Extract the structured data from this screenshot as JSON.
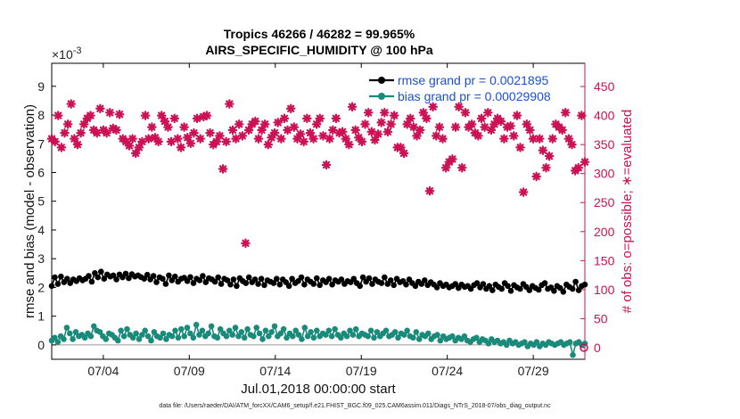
{
  "chart_data": {
    "type": "line",
    "title": "Tropics 46266 / 46282 = 99.965%",
    "subtitle": "AIRS_SPECIFIC_HUMIDITY @ 100 hPa",
    "xlabel": "Jul.01,2018 00:00:00 start",
    "ylabel_left": "rmse and bias (model - observation)",
    "ylabel_right": "# of obs: o=possible; ∗=evaluated",
    "exponent_label": "×10",
    "exponent_power": "-3",
    "x_range": [
      1.0,
      32.0
    ],
    "x_ticks": [
      {
        "value": 4,
        "label": "07/04"
      },
      {
        "value": 9,
        "label": "07/09"
      },
      {
        "value": 14,
        "label": "07/14"
      },
      {
        "value": 19,
        "label": "07/19"
      },
      {
        "value": 24,
        "label": "07/24"
      },
      {
        "value": 29,
        "label": "07/29"
      }
    ],
    "ylim_left": [
      -0.5,
      9.8
    ],
    "y_ticks_left": [
      "0",
      "1",
      "2",
      "3",
      "4",
      "5",
      "6",
      "7",
      "8",
      "9"
    ],
    "ylim_right": [
      -20,
      490
    ],
    "y_ticks_right": [
      "0",
      "50",
      "100",
      "150",
      "200",
      "250",
      "300",
      "350",
      "400",
      "450"
    ],
    "footnote": "data file: /Users/raeder/DAI/ATM_forcXX/CAM6_setup/f.e21.FHIST_BGC.f09_025.CAM6assim.011/Diags_NTrS_2018-07/obs_diag_output.nc",
    "series": [
      {
        "name": "rmse grand pr = 0.0021895",
        "axis": "left",
        "color": "#000000",
        "marker": "circle",
        "values": [
          2.05,
          2.35,
          2.12,
          2.38,
          2.18,
          2.3,
          2.15,
          2.28,
          2.22,
          2.32,
          2.25,
          2.3,
          2.4,
          2.2,
          2.5,
          2.35,
          2.55,
          2.3,
          2.45,
          2.38,
          2.42,
          2.28,
          2.45,
          2.35,
          2.48,
          2.32,
          2.46,
          2.38,
          2.42,
          2.36,
          2.3,
          2.44,
          2.28,
          2.4,
          2.18,
          2.35,
          2.3,
          2.12,
          2.42,
          2.25,
          2.38,
          2.2,
          2.3,
          2.34,
          2.22,
          2.36,
          2.15,
          2.3,
          2.25,
          2.4,
          2.18,
          2.32,
          2.28,
          2.2,
          2.35,
          2.12,
          2.3,
          2.25,
          2.1,
          2.28,
          2.05,
          2.32,
          2.22,
          2.15,
          2.35,
          2.18,
          2.28,
          2.12,
          2.3,
          2.08,
          2.25,
          2.2,
          2.15,
          2.3,
          2.1,
          2.28,
          2.18,
          2.05,
          2.3,
          2.15,
          2.22,
          2.35,
          2.1,
          2.28,
          2.2,
          2.12,
          2.32,
          2.08,
          2.25,
          2.18,
          2.3,
          2.1,
          2.25,
          2.2,
          2.28,
          2.12,
          2.22,
          2.18,
          2.3,
          2.15,
          2.05,
          2.35,
          2.2,
          2.32,
          2.12,
          2.28,
          2.2,
          2.15,
          2.35,
          2.12,
          2.25,
          2.08,
          2.3,
          2.18,
          2.22,
          2.1,
          2.28,
          2.15,
          2.05,
          2.2,
          2.12,
          2.25,
          2.08,
          2.18,
          2.1,
          2.0,
          2.15,
          2.05,
          2.1,
          2.0,
          2.05,
          2.12,
          1.98,
          2.1,
          2.02,
          2.05,
          1.95,
          2.08,
          2.15,
          2.0,
          2.12,
          1.95,
          2.05,
          1.9,
          2.1,
          2.02,
          1.95,
          2.15,
          2.05,
          1.88,
          2.08,
          2.0,
          1.95,
          2.12,
          2.02,
          1.9,
          2.05,
          1.98,
          1.92,
          2.08,
          2.15,
          1.95,
          2.0,
          1.88,
          2.05,
          1.98,
          1.85,
          2.1,
          2.02,
          1.95,
          2.2,
          1.9,
          2.05,
          2.1
        ]
      },
      {
        "name": "bias grand pr = 0.00029908",
        "axis": "left",
        "color": "#1a8a7a",
        "marker": "circle",
        "values": [
          0.15,
          0.25,
          0.1,
          0.3,
          0.2,
          0.6,
          0.4,
          0.2,
          0.45,
          0.3,
          0.35,
          0.25,
          0.4,
          0.3,
          0.65,
          0.5,
          0.45,
          0.3,
          0.2,
          0.4,
          0.35,
          0.25,
          0.15,
          0.5,
          0.3,
          0.55,
          0.35,
          0.25,
          0.4,
          0.2,
          0.35,
          0.5,
          0.3,
          0.15,
          0.45,
          0.3,
          0.25,
          0.4,
          0.2,
          0.35,
          0.3,
          0.5,
          0.25,
          0.55,
          0.3,
          0.6,
          0.4,
          0.25,
          0.7,
          0.35,
          0.5,
          0.3,
          0.4,
          0.65,
          0.3,
          0.25,
          0.55,
          0.4,
          0.3,
          0.5,
          0.35,
          0.6,
          0.3,
          0.45,
          0.25,
          0.55,
          0.35,
          0.3,
          0.6,
          0.4,
          0.2,
          0.5,
          0.3,
          0.45,
          0.65,
          0.3,
          0.4,
          0.55,
          0.25,
          0.4,
          0.3,
          0.5,
          0.35,
          0.2,
          0.6,
          0.3,
          0.45,
          0.25,
          0.5,
          0.3,
          0.4,
          0.35,
          0.5,
          0.3,
          0.55,
          0.35,
          0.25,
          0.4,
          0.3,
          0.5,
          0.35,
          0.55,
          0.3,
          0.4,
          0.35,
          0.3,
          0.5,
          0.25,
          0.45,
          0.3,
          0.4,
          0.5,
          0.3,
          0.35,
          0.45,
          0.25,
          0.4,
          0.35,
          0.5,
          0.3,
          0.25,
          0.45,
          0.2,
          0.35,
          0.3,
          0.4,
          0.2,
          0.3,
          0.35,
          0.15,
          0.3,
          0.2,
          0.25,
          0.3,
          0.15,
          0.25,
          0.2,
          0.3,
          0.15,
          0.1,
          0.2,
          0.25,
          0.1,
          0.2,
          0.15,
          0.05,
          0.2,
          0.1,
          0.15,
          0.05,
          0.1,
          0.0,
          0.15,
          0.05,
          0.1,
          0.0,
          0.05,
          0.1,
          -0.05,
          0.05,
          0.0,
          0.1,
          -0.05,
          0.05,
          0.0,
          0.1,
          0.05,
          0.0,
          0.05,
          0.1,
          0.0,
          0.05,
          0.1,
          -0.35,
          0.05,
          0.1,
          0.0,
          0.05
        ]
      },
      {
        "name": "possible",
        "axis": "right",
        "color": "#cc1155",
        "marker": "circle-open",
        "values": [
          0
        ]
      },
      {
        "name": "evaluated",
        "axis": "right",
        "color": "#cc1155",
        "marker": "star",
        "values": [
          360,
          355,
          400,
          345,
          370,
          385,
          420,
          360,
          350,
          370,
          385,
          395,
          400,
          375,
          370,
          412,
          375,
          370,
          405,
          378,
          375,
          402,
          360,
          355,
          348,
          360,
          335,
          345,
          355,
          400,
          360,
          380,
          362,
          355,
          400,
          390,
          380,
          355,
          395,
          360,
          345,
          380,
          362,
          352,
          370,
          395,
          360,
          398,
          400,
          370,
          350,
          355,
          365,
          308,
          355,
          420,
          375,
          360,
          385,
          365,
          180,
          375,
          385,
          390,
          360,
          375,
          385,
          350,
          362,
          370,
          388,
          360,
          395,
          375,
          412,
          380,
          360,
          368,
          355,
          395,
          370,
          360,
          385,
          395,
          365,
          315,
          360,
          375,
          395,
          370,
          372,
          360,
          350,
          415,
          375,
          362,
          355,
          385,
          405,
          372,
          358,
          368,
          388,
          405,
          372,
          385,
          400,
          345,
          345,
          335,
          385,
          395,
          380,
          365,
          375,
          405,
          395,
          270,
          415,
          365,
          380,
          360,
          310,
          320,
          325,
          380,
          415,
          310,
          405,
          380,
          385,
          370,
          365,
          395,
          380,
          405,
          375,
          385,
          395,
          390,
          360,
          380,
          382,
          365,
          400,
          345,
          268,
          385,
          375,
          360,
          295,
          360,
          340,
          310,
          330,
          360,
          385,
          380,
          375,
          405,
          360,
          350,
          305,
          310,
          400,
          320
        ]
      }
    ]
  }
}
